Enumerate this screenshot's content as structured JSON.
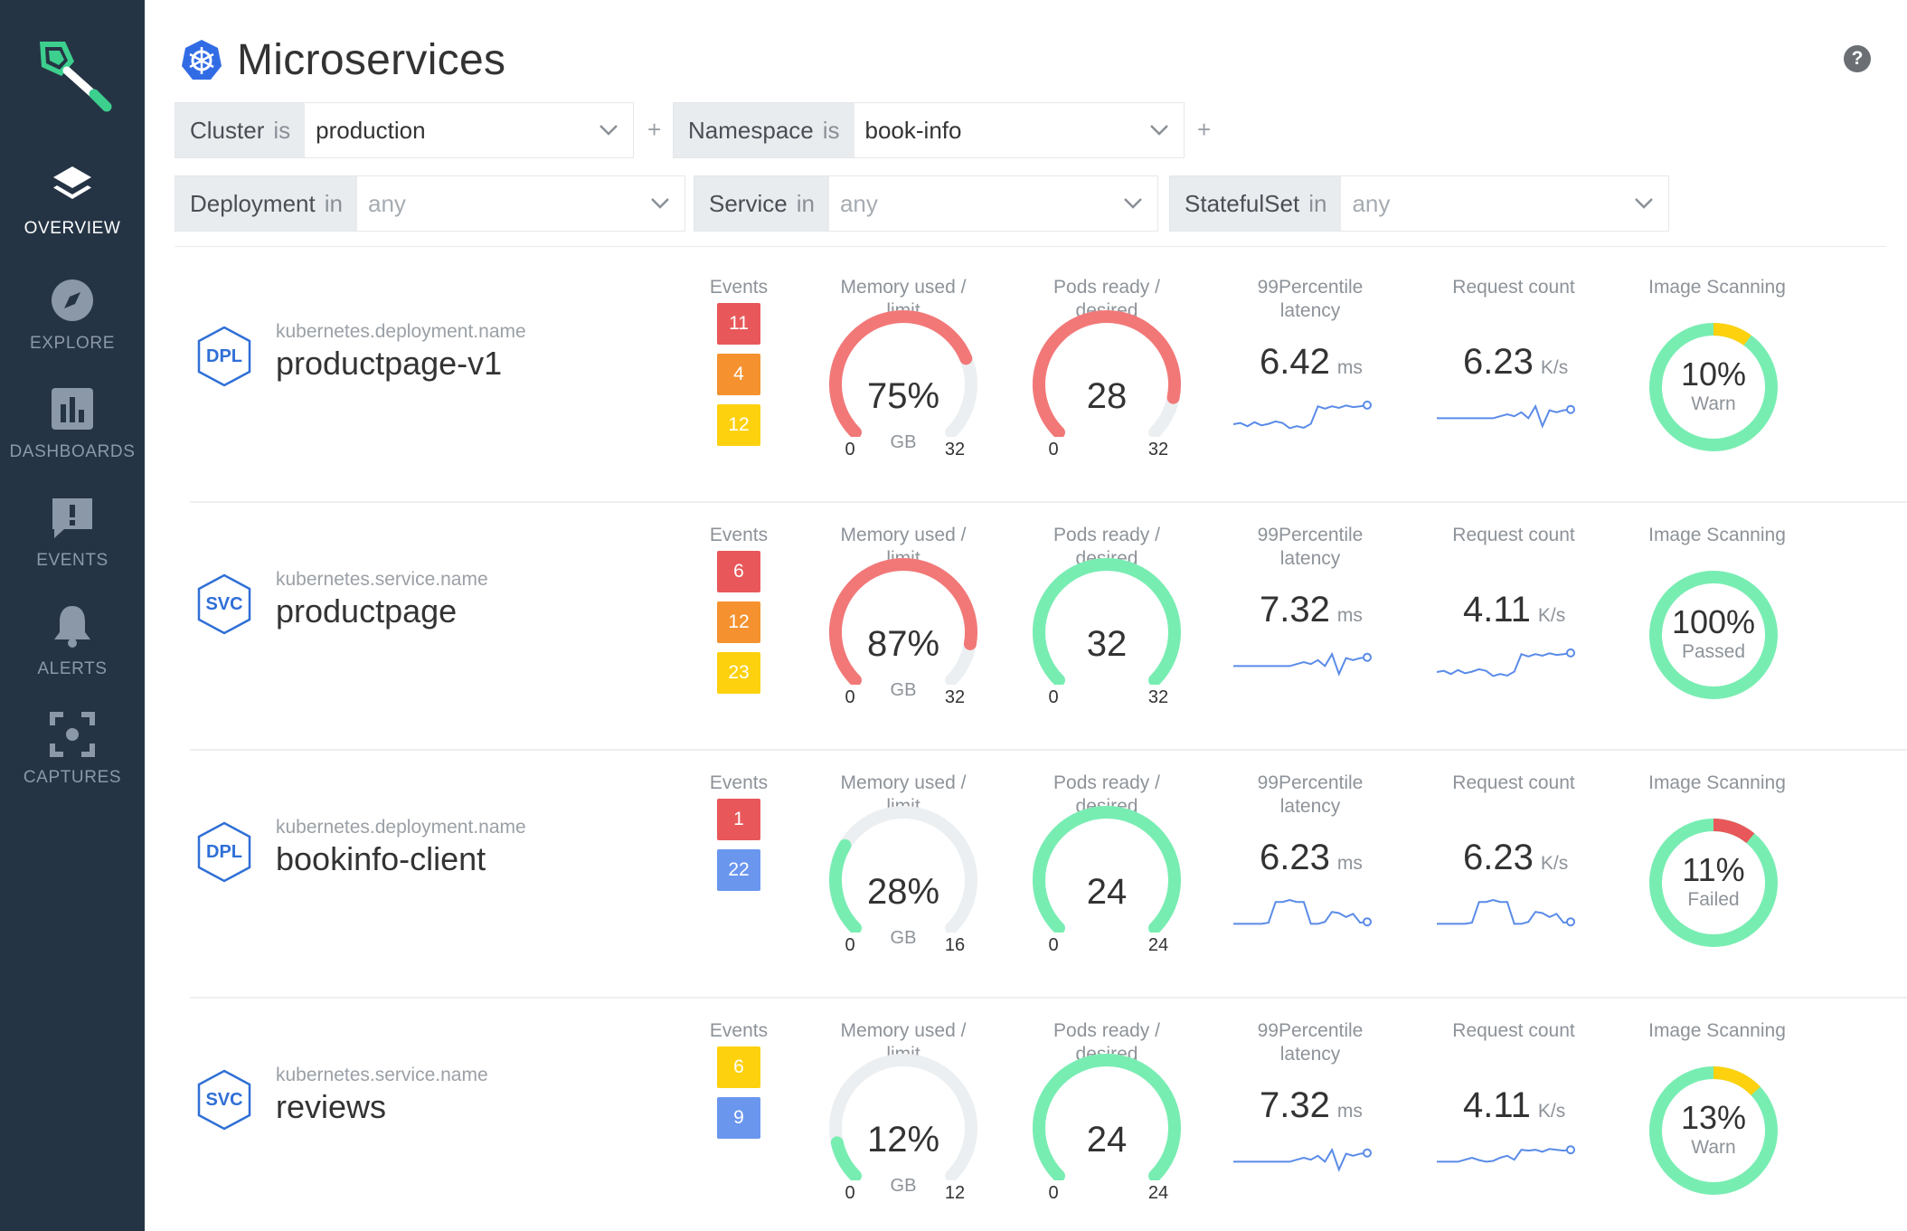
{
  "app": {
    "title": "Microservices",
    "help_label": "?"
  },
  "sidebar": {
    "logo": "sysdig-shovel-logo",
    "items": [
      {
        "label": "OVERVIEW",
        "icon": "layers-icon",
        "active": true
      },
      {
        "label": "EXPLORE",
        "icon": "compass-icon",
        "active": false
      },
      {
        "label": "DASHBOARDS",
        "icon": "bar-chart-icon",
        "active": false
      },
      {
        "label": "EVENTS",
        "icon": "message-alert-icon",
        "active": false
      },
      {
        "label": "ALERTS",
        "icon": "bell-icon",
        "active": false
      },
      {
        "label": "CAPTURES",
        "icon": "capture-frame-icon",
        "active": false
      }
    ]
  },
  "filters": [
    {
      "key": "Cluster",
      "op": "is",
      "value": "production",
      "placeholder": false
    },
    {
      "key": "Namespace",
      "op": "is",
      "value": "book-info",
      "placeholder": false
    },
    {
      "key": "Deployment",
      "op": "in",
      "value": "any",
      "placeholder": true
    },
    {
      "key": "Service",
      "op": "in",
      "value": "any",
      "placeholder": true
    },
    {
      "key": "StatefulSet",
      "op": "in",
      "value": "any",
      "placeholder": true
    }
  ],
  "add_filter_label": "+",
  "columns": {
    "events": "Events",
    "memory": [
      "Memory used /",
      "limit"
    ],
    "pods": [
      "Pods ready /",
      "desired"
    ],
    "latency": [
      "99Percentile",
      "latency"
    ],
    "requests": "Request count",
    "scanning": "Image Scanning"
  },
  "colors": {
    "red": "#e8585a",
    "orange": "#f5922f",
    "yellow": "#fdd10e",
    "blue": "#6a96ee",
    "green": "#78edb2",
    "gauge_red": "#f27878",
    "gauge_track": "#eceff1",
    "spark": "#5a8be8"
  },
  "services": [
    {
      "kind": "DPL",
      "type_label": "kubernetes.deployment.name",
      "name": "productpage-v1",
      "events": [
        {
          "count": "11",
          "color": "red"
        },
        {
          "count": "4",
          "color": "orange"
        },
        {
          "count": "12",
          "color": "yellow"
        }
      ],
      "memory": {
        "value": "75%",
        "fraction": 0.75,
        "min": "0",
        "max": "32",
        "unit": "GB",
        "color": "gauge_red"
      },
      "pods": {
        "value": "28",
        "fraction": 0.875,
        "min": "0",
        "max": "32",
        "color": "gauge_red"
      },
      "latency": {
        "value": "6.42",
        "unit": "ms",
        "spark": [
          0.75,
          0.72,
          0.8,
          0.7,
          0.78,
          0.74,
          0.68,
          0.72,
          0.85,
          0.8,
          0.84,
          0.74,
          0.3,
          0.36,
          0.3,
          0.34,
          0.28,
          0.32,
          0.3,
          0.27
        ]
      },
      "requests": {
        "value": "6.23",
        "unit": "K/s",
        "spark": [
          0.6,
          0.6,
          0.6,
          0.6,
          0.6,
          0.6,
          0.6,
          0.6,
          0.6,
          0.55,
          0.5,
          0.55,
          0.45,
          0.6,
          0.3,
          0.8,
          0.4,
          0.45,
          0.4,
          0.38
        ]
      },
      "scan": {
        "pct": "10%",
        "fraction": 0.1,
        "status": "Warn",
        "color": "yellow"
      }
    },
    {
      "kind": "SVC",
      "type_label": "kubernetes.service.name",
      "name": "productpage",
      "events": [
        {
          "count": "6",
          "color": "red"
        },
        {
          "count": "12",
          "color": "orange"
        },
        {
          "count": "23",
          "color": "yellow"
        }
      ],
      "memory": {
        "value": "87%",
        "fraction": 0.87,
        "min": "0",
        "max": "32",
        "unit": "GB",
        "color": "gauge_red"
      },
      "pods": {
        "value": "32",
        "fraction": 1.0,
        "min": "0",
        "max": "32",
        "color": "green"
      },
      "latency": {
        "value": "7.32",
        "unit": "ms",
        "spark": [
          0.6,
          0.6,
          0.6,
          0.6,
          0.6,
          0.6,
          0.6,
          0.6,
          0.6,
          0.55,
          0.5,
          0.55,
          0.45,
          0.6,
          0.3,
          0.8,
          0.4,
          0.45,
          0.4,
          0.38
        ]
      },
      "requests": {
        "value": "4.11",
        "unit": "K/s",
        "spark": [
          0.75,
          0.72,
          0.8,
          0.7,
          0.78,
          0.74,
          0.68,
          0.72,
          0.85,
          0.8,
          0.84,
          0.74,
          0.3,
          0.36,
          0.3,
          0.34,
          0.28,
          0.32,
          0.3,
          0.27
        ]
      },
      "scan": {
        "pct": "100%",
        "fraction": 1.0,
        "status": "Passed",
        "color": "green"
      }
    },
    {
      "kind": "DPL",
      "type_label": "kubernetes.deployment.name",
      "name": "bookinfo-client",
      "events": [
        {
          "count": "1",
          "color": "red"
        },
        {
          "count": "22",
          "color": "blue"
        }
      ],
      "memory": {
        "value": "28%",
        "fraction": 0.28,
        "min": "0",
        "max": "16",
        "unit": "GB",
        "color": "green"
      },
      "pods": {
        "value": "24",
        "fraction": 1.0,
        "min": "0",
        "max": "24",
        "color": "green"
      },
      "latency": {
        "value": "6.23",
        "unit": "ms",
        "spark": [
          0.85,
          0.85,
          0.85,
          0.85,
          0.85,
          0.82,
          0.3,
          0.3,
          0.25,
          0.3,
          0.3,
          0.85,
          0.85,
          0.8,
          0.55,
          0.58,
          0.68,
          0.6,
          0.82,
          0.8
        ]
      },
      "requests": {
        "value": "6.23",
        "unit": "K/s",
        "spark": [
          0.85,
          0.85,
          0.85,
          0.85,
          0.85,
          0.82,
          0.3,
          0.3,
          0.25,
          0.3,
          0.3,
          0.85,
          0.85,
          0.8,
          0.55,
          0.58,
          0.68,
          0.6,
          0.82,
          0.8
        ]
      },
      "scan": {
        "pct": "11%",
        "fraction": 0.11,
        "status": "Failed",
        "color": "red"
      }
    },
    {
      "kind": "SVC",
      "type_label": "kubernetes.service.name",
      "name": "reviews",
      "events": [
        {
          "count": "6",
          "color": "yellow"
        },
        {
          "count": "9",
          "color": "blue"
        }
      ],
      "memory": {
        "value": "12%",
        "fraction": 0.12,
        "min": "0",
        "max": "12",
        "unit": "GB",
        "color": "green"
      },
      "pods": {
        "value": "24",
        "fraction": 1.0,
        "min": "0",
        "max": "24",
        "color": "green"
      },
      "latency": {
        "value": "7.32",
        "unit": "ms",
        "spark": [
          0.6,
          0.6,
          0.6,
          0.6,
          0.6,
          0.6,
          0.6,
          0.6,
          0.6,
          0.55,
          0.5,
          0.55,
          0.45,
          0.6,
          0.3,
          0.8,
          0.4,
          0.45,
          0.4,
          0.38
        ]
      },
      "requests": {
        "value": "4.11",
        "unit": "K/s",
        "spark": [
          0.6,
          0.6,
          0.6,
          0.6,
          0.55,
          0.5,
          0.56,
          0.6,
          0.58,
          0.5,
          0.45,
          0.55,
          0.3,
          0.32,
          0.3,
          0.35,
          0.28,
          0.3,
          0.32,
          0.3
        ]
      },
      "scan": {
        "pct": "13%",
        "fraction": 0.13,
        "status": "Warn",
        "color": "yellow"
      }
    }
  ]
}
